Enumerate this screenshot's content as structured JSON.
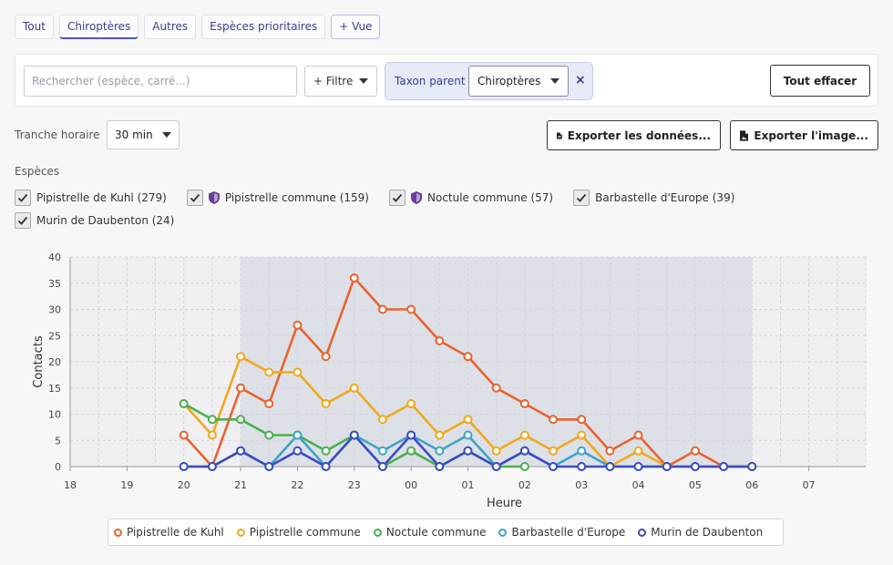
{
  "tabs": [
    {
      "label": "Tout"
    },
    {
      "label": "Chiroptères"
    },
    {
      "label": "Autres"
    },
    {
      "label": "Espèces prioritaires"
    },
    {
      "label": "+ Vue"
    }
  ],
  "filter_bar": {
    "search_placeholder": "Rechercher (espèce, carré...)",
    "filter_button": "+ Filtre",
    "chip_label": "Taxon parent",
    "chip_value": "Chiroptères",
    "chip_close": "×",
    "clear_button": "Tout effacer"
  },
  "controls": {
    "tranche_label": "Tranche horaire",
    "tranche_value": "30 min",
    "export_data": "Exporter les données...",
    "export_image": "Exporter l'image..."
  },
  "species_label": "Espèces",
  "species": [
    {
      "label": "Pipistrelle de Kuhl (279)",
      "checked": true,
      "protected": false
    },
    {
      "label": "Pipistrelle commune (159)",
      "checked": true,
      "protected": true
    },
    {
      "label": "Noctule commune (57)",
      "checked": true,
      "protected": true
    },
    {
      "label": "Barbastelle d'Europe (39)",
      "checked": true,
      "protected": false
    },
    {
      "label": "Murin de Daubenton (24)",
      "checked": true,
      "protected": false
    }
  ],
  "chart_data": {
    "type": "line",
    "xlabel": "Heure",
    "ylabel": "Contacts",
    "ylim": [
      0,
      40
    ],
    "yticks": [
      0,
      5,
      10,
      15,
      20,
      25,
      30,
      35,
      40
    ],
    "xticks": [
      "18",
      "19",
      "20",
      "21",
      "22",
      "23",
      "00",
      "01",
      "02",
      "03",
      "04",
      "05",
      "06",
      "07"
    ],
    "night_band": [
      "21:00",
      "06:00"
    ],
    "x": [
      "20:00",
      "20:30",
      "21:00",
      "21:30",
      "22:00",
      "22:30",
      "23:00",
      "23:30",
      "00:00",
      "00:30",
      "01:00",
      "01:30",
      "02:00",
      "02:30",
      "03:00",
      "03:30",
      "04:00",
      "04:30",
      "05:00",
      "05:30",
      "06:00"
    ],
    "series": [
      {
        "name": "Pipistrelle de Kuhl",
        "color": "#e8632f",
        "values": [
          6,
          0,
          15,
          12,
          27,
          21,
          36,
          30,
          30,
          24,
          21,
          15,
          12,
          9,
          9,
          3,
          6,
          0,
          3,
          0,
          0
        ]
      },
      {
        "name": "Pipistrelle commune",
        "color": "#f2a81d",
        "values": [
          12,
          6,
          21,
          18,
          18,
          12,
          15,
          9,
          12,
          6,
          9,
          3,
          6,
          3,
          6,
          0,
          3,
          0,
          0,
          0,
          0
        ]
      },
      {
        "name": "Noctule commune",
        "color": "#4caf50",
        "values": [
          12,
          9,
          9,
          6,
          6,
          3,
          6,
          0,
          3,
          0,
          3,
          0,
          0,
          null,
          null,
          null,
          null,
          null,
          null,
          null,
          null
        ]
      },
      {
        "name": "Barbastelle d'Europe",
        "color": "#3fa3c9",
        "values": [
          0,
          0,
          3,
          0,
          6,
          0,
          6,
          3,
          6,
          3,
          6,
          0,
          3,
          0,
          3,
          0,
          0,
          0,
          0,
          0,
          0
        ]
      },
      {
        "name": "Murin de Daubenton",
        "color": "#3b4cc0",
        "values": [
          0,
          0,
          3,
          0,
          3,
          0,
          6,
          0,
          6,
          0,
          3,
          0,
          3,
          0,
          0,
          0,
          0,
          0,
          0,
          0,
          0
        ]
      }
    ],
    "legend": "bottom"
  }
}
